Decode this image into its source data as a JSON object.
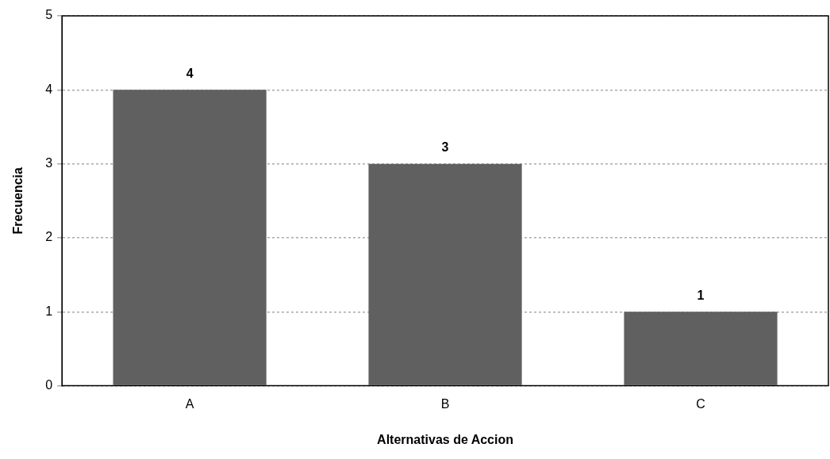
{
  "chart_data": {
    "type": "bar",
    "xlabel": "Alternativas de Accion",
    "ylabel": "Frecuencia",
    "categories": [
      "A",
      "B",
      "C"
    ],
    "values": [
      4,
      3,
      1
    ],
    "color": "#606060",
    "ylim": [
      0,
      5
    ],
    "yticks": [
      0,
      1,
      2,
      3,
      4,
      5
    ],
    "grid": "y",
    "data_labels": true,
    "legend": false
  }
}
